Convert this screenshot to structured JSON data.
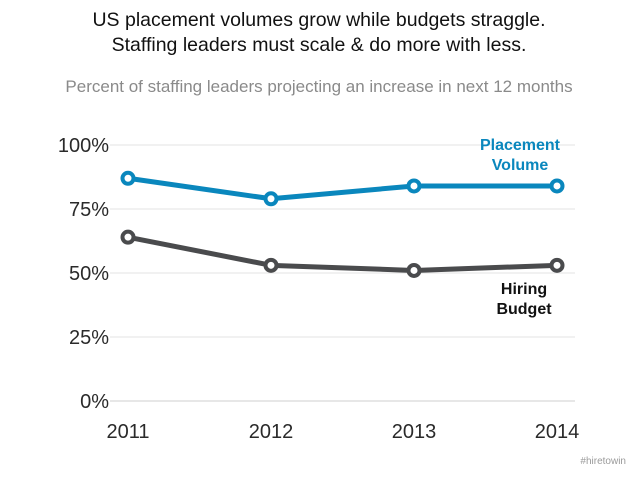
{
  "header": {
    "title_line1": "US placement volumes grow while budgets straggle.",
    "title_line2": "Staffing leaders must scale & do more with less.",
    "subtitle": "Percent of staffing leaders projecting an increase in next 12 months"
  },
  "watermark": "#hiretowin",
  "chart_data": {
    "type": "line",
    "title": "US placement volumes grow while budgets straggle. Staffing leaders must scale & do more with less.",
    "subtitle": "Percent of staffing leaders projecting an increase in next 12 months",
    "xlabel": "",
    "ylabel": "",
    "x": [
      "2011",
      "2012",
      "2013",
      "2014"
    ],
    "ylim": [
      0,
      100
    ],
    "yticks": [
      0,
      25,
      50,
      75,
      100
    ],
    "ytick_labels": [
      "0%",
      "25%",
      "50%",
      "75%",
      "100%"
    ],
    "grid": true,
    "legend": "inline labels at right end of lines",
    "series": [
      {
        "name": "Placement Volume",
        "label_lines": [
          "Placement",
          "Volume"
        ],
        "values": [
          87,
          79,
          84,
          84
        ],
        "color": "#0a87bd"
      },
      {
        "name": "Hiring Budget",
        "label_lines": [
          "Hiring",
          "Budget"
        ],
        "values": [
          64,
          53,
          51,
          53
        ],
        "color": "#4a4b4d"
      }
    ]
  }
}
